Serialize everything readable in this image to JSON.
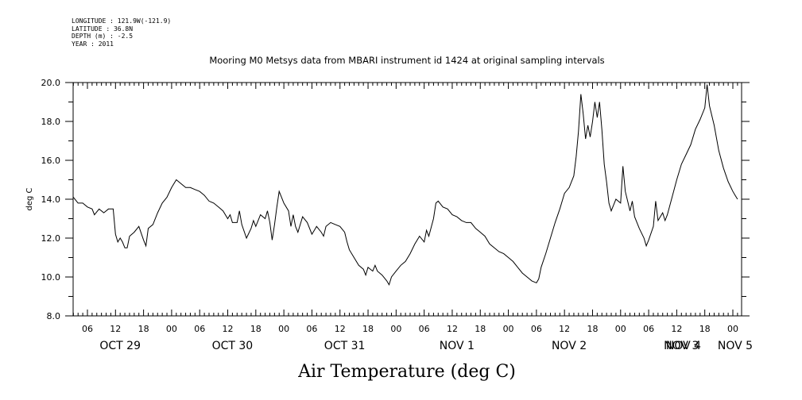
{
  "metadata": {
    "longitude": "LONGITUDE : 121.9W(-121.9)",
    "latitude": "LATITUDE : 36.8N",
    "depth": "DEPTH (m) : -2.5",
    "year": "YEAR : 2011"
  },
  "chart_data": {
    "type": "line",
    "title": "Mooring M0 Metsys data from MBARI instrument id 1424 at original sampling intervals",
    "xlabel": "Air Temperature (deg C)",
    "ylabel": "deg C",
    "ylim": [
      8.0,
      20.0
    ],
    "yticks": [
      "8.0",
      "10.0",
      "12.0",
      "14.0",
      "16.0",
      "18.0",
      "20.0"
    ],
    "xlim_hours": [
      0,
      142
    ],
    "hour_ticks": [
      {
        "h": 3,
        "label": "06"
      },
      {
        "h": 9,
        "label": "12"
      },
      {
        "h": 15,
        "label": "18"
      },
      {
        "h": 21,
        "label": "00"
      },
      {
        "h": 27,
        "label": "06"
      },
      {
        "h": 33,
        "label": "12"
      },
      {
        "h": 39,
        "label": "18"
      },
      {
        "h": 45,
        "label": "00"
      },
      {
        "h": 51,
        "label": "06"
      },
      {
        "h": 57,
        "label": "12"
      },
      {
        "h": 63,
        "label": "18"
      },
      {
        "h": 69,
        "label": "00"
      },
      {
        "h": 75,
        "label": "06"
      },
      {
        "h": 81,
        "label": "12"
      },
      {
        "h": 87,
        "label": "18"
      },
      {
        "h": 93,
        "label": "00"
      },
      {
        "h": 99,
        "label": "06"
      },
      {
        "h": 105,
        "label": "12"
      },
      {
        "h": 111,
        "label": "18"
      },
      {
        "h": 117,
        "label": "00"
      },
      {
        "h": 123,
        "label": "06"
      },
      {
        "h": 129,
        "label": "12"
      },
      {
        "h": 135,
        "label": "18"
      },
      {
        "h": 141,
        "label": "00"
      }
    ],
    "date_labels": [
      {
        "h": 10,
        "label": "OCT 29"
      },
      {
        "h": 34,
        "label": "OCT 30"
      },
      {
        "h": 58,
        "label": "OCT 31"
      },
      {
        "h": 82,
        "label": "NOV  1"
      },
      {
        "h": 106,
        "label": "NOV  2"
      },
      {
        "h": 130,
        "label": "NOV  3"
      },
      {
        "h": 154,
        "label": "NOV  4"
      },
      {
        "h": 169,
        "label": "NOV  5"
      }
    ],
    "series": [
      {
        "points": [
          [
            0.0,
            14.1
          ],
          [
            1.0,
            13.8
          ],
          [
            2.0,
            13.8
          ],
          [
            3.0,
            13.6
          ],
          [
            4.0,
            13.5
          ],
          [
            4.5,
            13.2
          ],
          [
            5.5,
            13.5
          ],
          [
            6.5,
            13.3
          ],
          [
            7.5,
            13.5
          ],
          [
            8.5,
            13.5
          ],
          [
            9.0,
            12.2
          ],
          [
            9.5,
            11.8
          ],
          [
            10.0,
            12.0
          ],
          [
            10.5,
            11.8
          ],
          [
            11.0,
            11.5
          ],
          [
            11.5,
            11.5
          ],
          [
            12.0,
            12.1
          ],
          [
            13.0,
            12.3
          ],
          [
            14.0,
            12.6
          ],
          [
            15.0,
            11.9
          ],
          [
            15.5,
            11.6
          ],
          [
            16.0,
            12.5
          ],
          [
            17.0,
            12.7
          ],
          [
            18.0,
            13.3
          ],
          [
            19.0,
            13.8
          ],
          [
            20.0,
            14.1
          ],
          [
            21.0,
            14.6
          ],
          [
            22.0,
            15.0
          ],
          [
            23.0,
            14.8
          ],
          [
            24.0,
            14.6
          ],
          [
            25.0,
            14.6
          ],
          [
            26.0,
            14.5
          ],
          [
            27.0,
            14.4
          ],
          [
            28.0,
            14.2
          ],
          [
            29.0,
            13.9
          ],
          [
            30.0,
            13.8
          ],
          [
            31.0,
            13.6
          ],
          [
            32.0,
            13.4
          ],
          [
            33.0,
            13.0
          ],
          [
            33.5,
            13.2
          ],
          [
            34.0,
            12.8
          ],
          [
            35.0,
            12.8
          ],
          [
            35.5,
            13.4
          ],
          [
            36.0,
            12.7
          ],
          [
            37.0,
            12.0
          ],
          [
            38.0,
            12.5
          ],
          [
            38.5,
            12.9
          ],
          [
            39.0,
            12.6
          ],
          [
            40.0,
            13.2
          ],
          [
            41.0,
            13.0
          ],
          [
            41.5,
            13.4
          ],
          [
            42.0,
            12.8
          ],
          [
            42.5,
            11.9
          ],
          [
            43.0,
            12.7
          ],
          [
            43.5,
            13.6
          ],
          [
            44.0,
            14.4
          ],
          [
            44.5,
            14.1
          ],
          [
            45.0,
            13.8
          ],
          [
            46.0,
            13.4
          ],
          [
            46.5,
            12.6
          ],
          [
            47.0,
            13.2
          ],
          [
            47.5,
            12.6
          ],
          [
            48.0,
            12.3
          ],
          [
            49.0,
            13.1
          ],
          [
            50.0,
            12.8
          ],
          [
            51.0,
            12.2
          ],
          [
            51.5,
            12.4
          ],
          [
            52.0,
            12.6
          ],
          [
            53.0,
            12.3
          ],
          [
            53.5,
            12.1
          ],
          [
            54.0,
            12.6
          ],
          [
            55.0,
            12.8
          ],
          [
            56.0,
            12.7
          ],
          [
            57.0,
            12.6
          ],
          [
            58.0,
            12.3
          ],
          [
            58.5,
            11.8
          ],
          [
            59.0,
            11.4
          ],
          [
            60.0,
            11.0
          ],
          [
            61.0,
            10.6
          ],
          [
            62.0,
            10.4
          ],
          [
            62.5,
            10.1
          ],
          [
            63.0,
            10.5
          ],
          [
            64.0,
            10.3
          ],
          [
            64.5,
            10.6
          ],
          [
            65.0,
            10.3
          ],
          [
            66.0,
            10.1
          ],
          [
            67.0,
            9.8
          ],
          [
            67.5,
            9.6
          ],
          [
            68.0,
            10.0
          ],
          [
            69.0,
            10.3
          ],
          [
            70.0,
            10.6
          ],
          [
            71.0,
            10.8
          ],
          [
            72.0,
            11.2
          ],
          [
            73.0,
            11.7
          ],
          [
            74.0,
            12.1
          ],
          [
            75.0,
            11.8
          ],
          [
            75.5,
            12.4
          ],
          [
            76.0,
            12.1
          ],
          [
            77.0,
            13.0
          ],
          [
            77.5,
            13.8
          ],
          [
            78.0,
            13.9
          ],
          [
            79.0,
            13.6
          ],
          [
            80.0,
            13.5
          ],
          [
            81.0,
            13.2
          ],
          [
            82.0,
            13.1
          ],
          [
            83.0,
            12.9
          ],
          [
            84.0,
            12.8
          ],
          [
            85.0,
            12.8
          ],
          [
            86.0,
            12.5
          ],
          [
            87.0,
            12.3
          ],
          [
            88.0,
            12.1
          ],
          [
            89.0,
            11.7
          ],
          [
            90.0,
            11.5
          ],
          [
            91.0,
            11.3
          ],
          [
            92.0,
            11.2
          ],
          [
            93.0,
            11.0
          ],
          [
            94.0,
            10.8
          ],
          [
            95.0,
            10.5
          ],
          [
            96.0,
            10.2
          ],
          [
            97.0,
            10.0
          ],
          [
            97.5,
            9.9
          ],
          [
            98.0,
            9.8
          ],
          [
            99.0,
            9.7
          ],
          [
            99.5,
            9.9
          ],
          [
            100.0,
            10.5
          ],
          [
            101.0,
            11.2
          ],
          [
            102.0,
            12.0
          ],
          [
            103.0,
            12.8
          ],
          [
            104.0,
            13.5
          ],
          [
            105.0,
            14.3
          ],
          [
            106.0,
            14.6
          ],
          [
            107.0,
            15.2
          ],
          [
            107.5,
            16.2
          ],
          [
            108.0,
            17.5
          ],
          [
            108.5,
            19.4
          ],
          [
            109.0,
            18.4
          ],
          [
            109.5,
            17.1
          ],
          [
            110.0,
            17.8
          ],
          [
            110.5,
            17.2
          ],
          [
            111.0,
            18.0
          ],
          [
            111.5,
            19.0
          ],
          [
            112.0,
            18.2
          ],
          [
            112.5,
            19.0
          ],
          [
            113.0,
            17.6
          ],
          [
            113.5,
            15.8
          ],
          [
            114.0,
            14.9
          ],
          [
            114.5,
            13.8
          ],
          [
            115.0,
            13.4
          ],
          [
            116.0,
            14.0
          ],
          [
            117.0,
            13.8
          ],
          [
            117.5,
            15.7
          ],
          [
            118.0,
            14.4
          ],
          [
            119.0,
            13.4
          ],
          [
            119.5,
            13.9
          ],
          [
            120.0,
            13.1
          ],
          [
            121.0,
            12.5
          ],
          [
            122.0,
            12.0
          ],
          [
            122.5,
            11.6
          ],
          [
            123.0,
            11.9
          ],
          [
            124.0,
            12.6
          ],
          [
            124.5,
            13.9
          ],
          [
            125.0,
            12.9
          ],
          [
            126.0,
            13.3
          ],
          [
            126.5,
            12.9
          ],
          [
            127.0,
            13.2
          ],
          [
            128.0,
            14.1
          ],
          [
            129.0,
            15.0
          ],
          [
            130.0,
            15.8
          ],
          [
            131.0,
            16.3
          ],
          [
            132.0,
            16.8
          ],
          [
            133.0,
            17.6
          ],
          [
            134.0,
            18.1
          ],
          [
            135.0,
            18.7
          ],
          [
            135.5,
            19.9
          ],
          [
            136.0,
            18.8
          ],
          [
            137.0,
            17.8
          ],
          [
            138.0,
            16.5
          ],
          [
            139.0,
            15.6
          ],
          [
            140.0,
            14.9
          ],
          [
            141.0,
            14.4
          ],
          [
            141.5,
            14.2
          ],
          [
            142.0,
            14.0
          ]
        ]
      }
    ]
  }
}
